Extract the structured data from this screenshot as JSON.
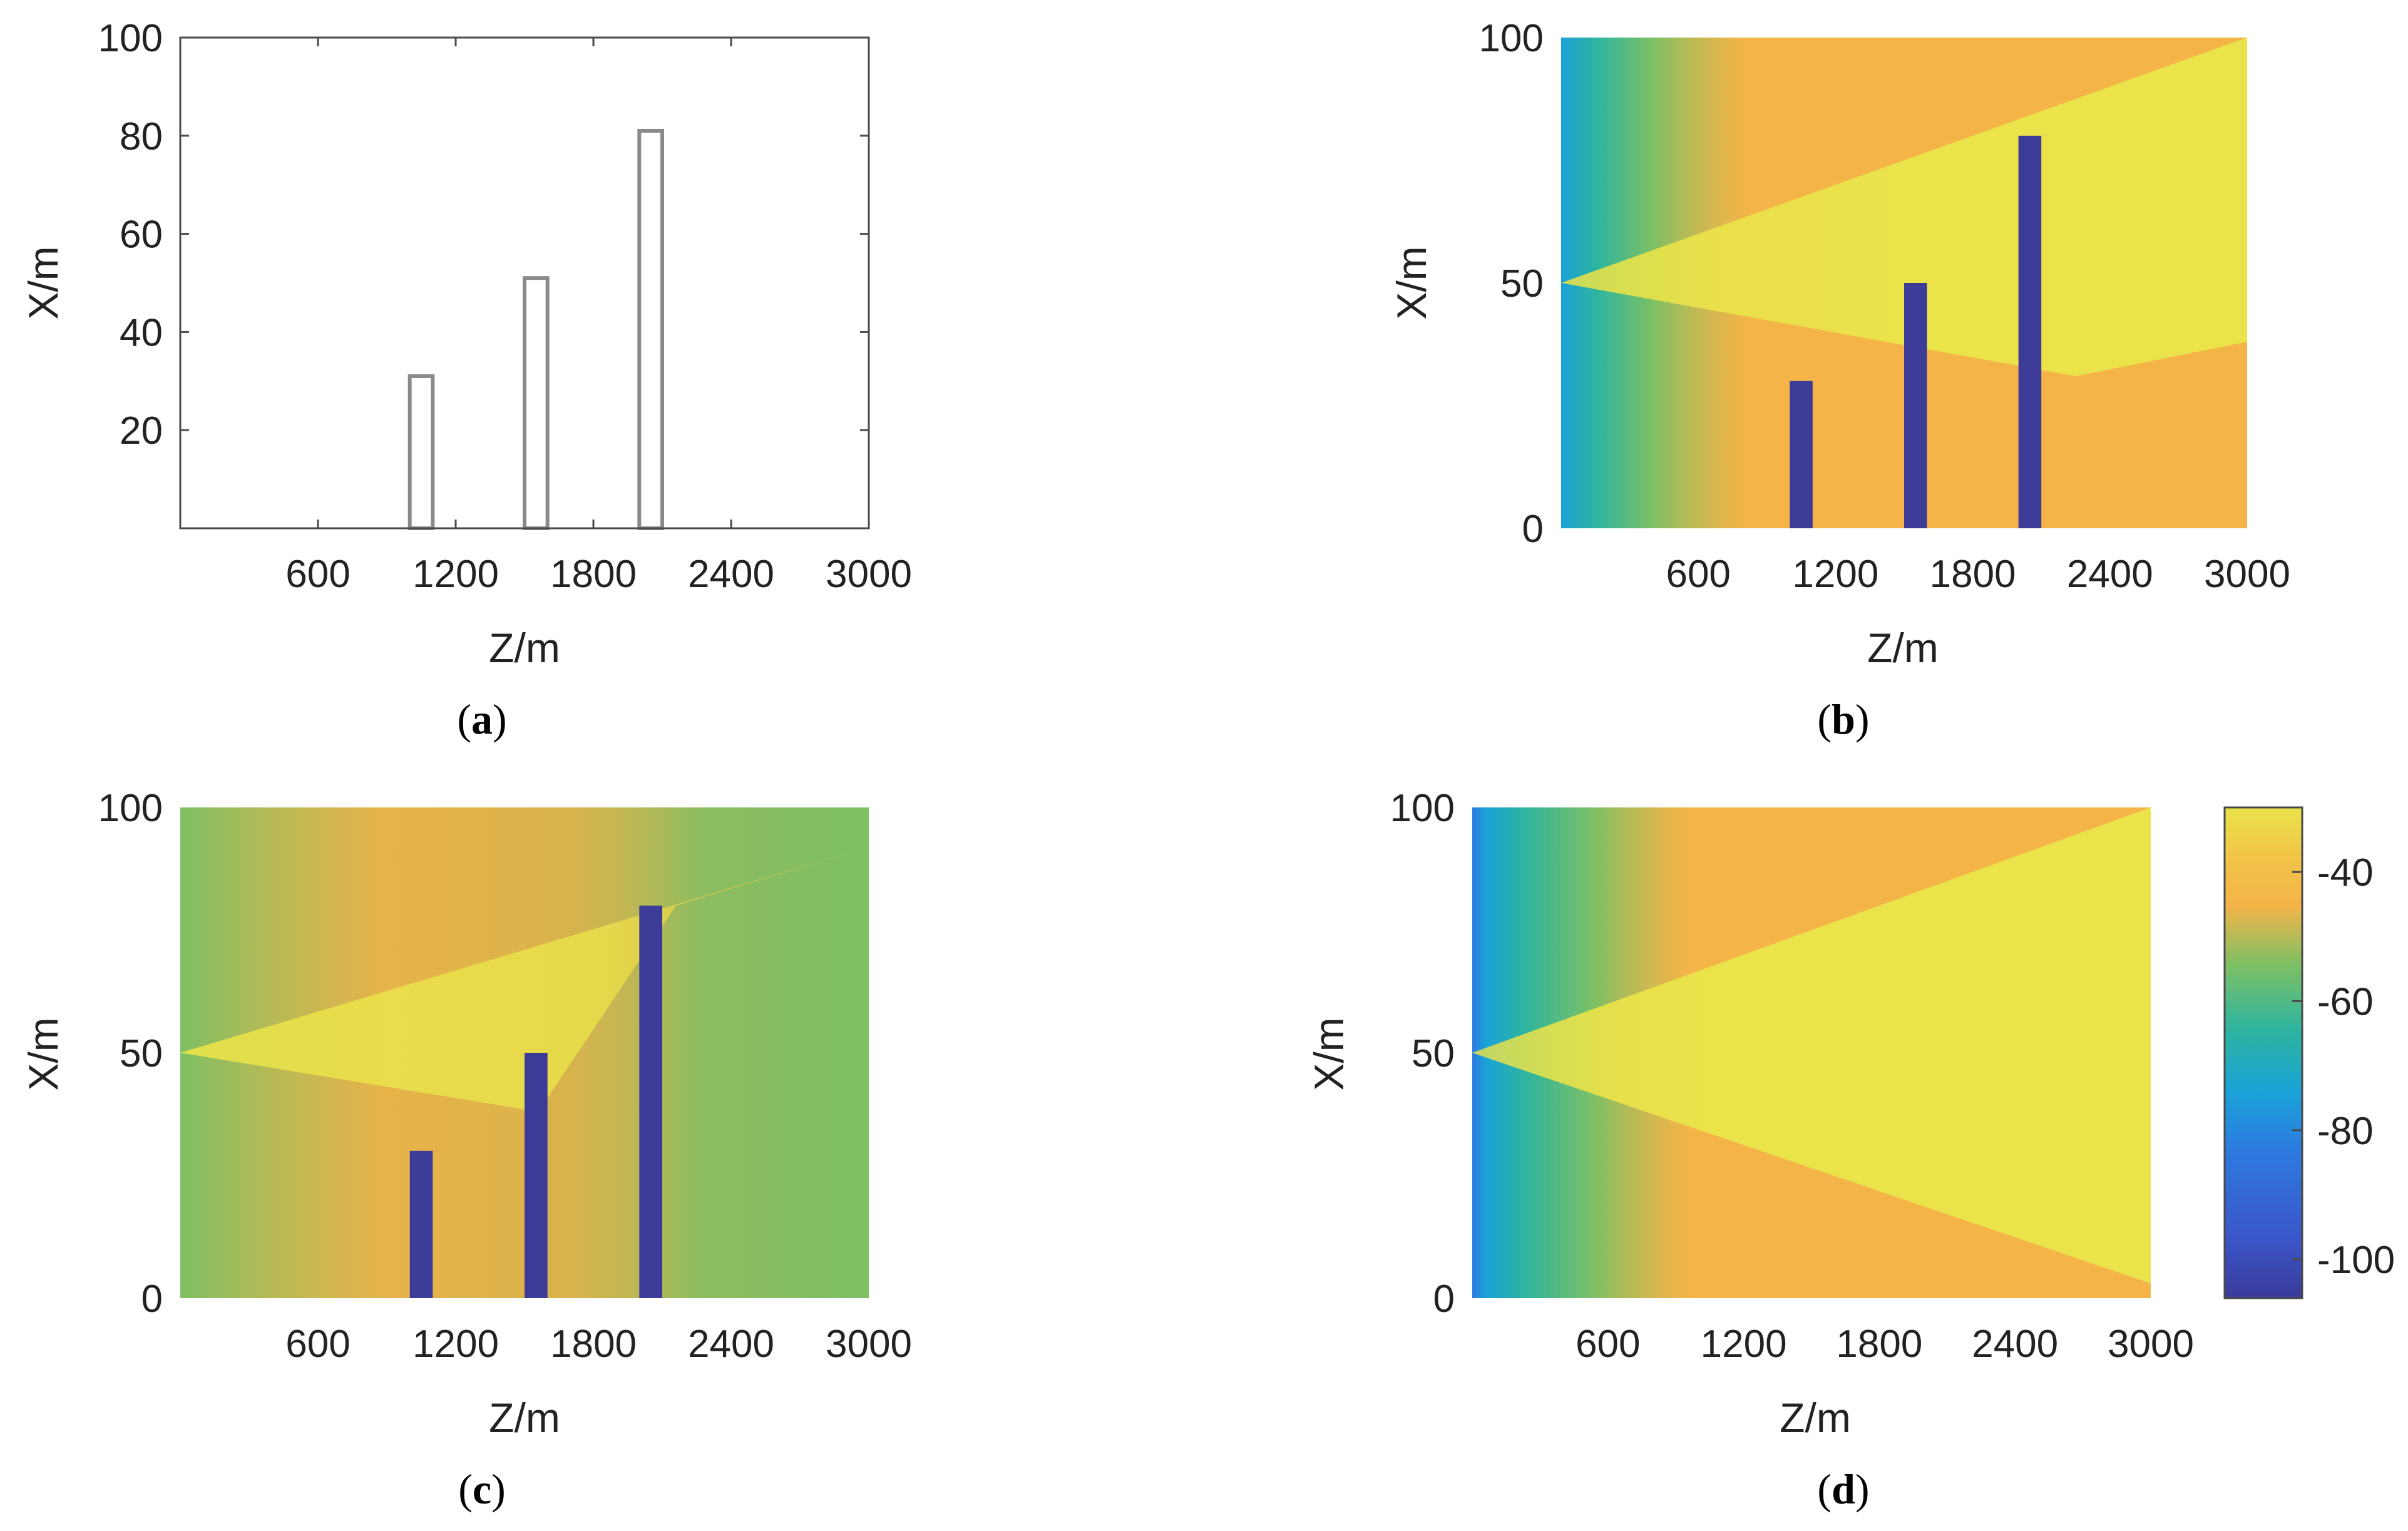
{
  "chart_data": [
    {
      "type": "heatmap",
      "panel": "a",
      "caption_letter": "a",
      "xlabel": "Z/m",
      "ylabel": "X/m",
      "xlim": [
        0,
        3000
      ],
      "ylim": [
        0,
        100
      ],
      "xticks": [
        600,
        1200,
        1800,
        2400,
        3000
      ],
      "yticks": [
        20,
        40,
        60,
        80,
        100
      ],
      "show_zero": false,
      "field": "none",
      "buildings": [
        {
          "z": [
            1000,
            1100
          ],
          "height": 31
        },
        {
          "z": [
            1500,
            1600
          ],
          "height": 51
        },
        {
          "z": [
            2000,
            2100
          ],
          "height": 81
        }
      ],
      "colorbar": false
    },
    {
      "type": "heatmap",
      "panel": "b",
      "caption_letter": "b",
      "xlabel": "Z/m",
      "ylabel": "X/m",
      "xlim": [
        0,
        3000
      ],
      "ylim": [
        0,
        100
      ],
      "xticks": [
        600,
        1200,
        1800,
        2400,
        3000
      ],
      "yticks": [
        0,
        50,
        100
      ],
      "show_zero": true,
      "field": "propagation loss with obstacles (model b)",
      "source": {
        "z": 0,
        "x": 50
      },
      "buildings": [
        {
          "z": [
            1000,
            1100
          ],
          "height": 30
        },
        {
          "z": [
            1500,
            1600
          ],
          "height": 50
        },
        {
          "z": [
            2000,
            2100
          ],
          "height": 80
        }
      ],
      "colorbar": false
    },
    {
      "type": "heatmap",
      "panel": "c",
      "caption_letter": "c",
      "xlabel": "Z/m",
      "ylabel": "X/m",
      "xlim": [
        0,
        3000
      ],
      "ylim": [
        0,
        100
      ],
      "xticks": [
        600,
        1200,
        1800,
        2400,
        3000
      ],
      "yticks": [
        0,
        50,
        100
      ],
      "show_zero": true,
      "field": "propagation loss with obstacles (model c)",
      "source": {
        "z": 0,
        "x": 50
      },
      "buildings": [
        {
          "z": [
            1000,
            1100
          ],
          "height": 30
        },
        {
          "z": [
            1500,
            1600
          ],
          "height": 50
        },
        {
          "z": [
            2000,
            2100
          ],
          "height": 80
        }
      ],
      "colorbar": false
    },
    {
      "type": "heatmap",
      "panel": "d",
      "caption_letter": "d",
      "xlabel": "Z/m",
      "ylabel": "X/m",
      "xlim": [
        0,
        3000
      ],
      "ylim": [
        0,
        100
      ],
      "xticks": [
        600,
        1200,
        1800,
        2400,
        3000
      ],
      "yticks": [
        0,
        50,
        100
      ],
      "show_zero": true,
      "field": "propagation loss, free space (no obstacles)",
      "source": {
        "z": 0,
        "x": 50
      },
      "buildings": [],
      "colorbar": true,
      "colorbar_range": [
        -106,
        -30
      ],
      "colorbar_ticks": [
        -40,
        -60,
        -80,
        -100
      ]
    }
  ],
  "colors": {
    "yellow": "#eae34a",
    "orange": "#f4b448",
    "green": "#7ec064",
    "teal": "#2fb59e",
    "cyan": "#1aa2d8",
    "blue": "#2d7ae0",
    "navy": "#3a3a9a",
    "building_fill": "#3c3b97",
    "outline": "#8a8a8a"
  }
}
